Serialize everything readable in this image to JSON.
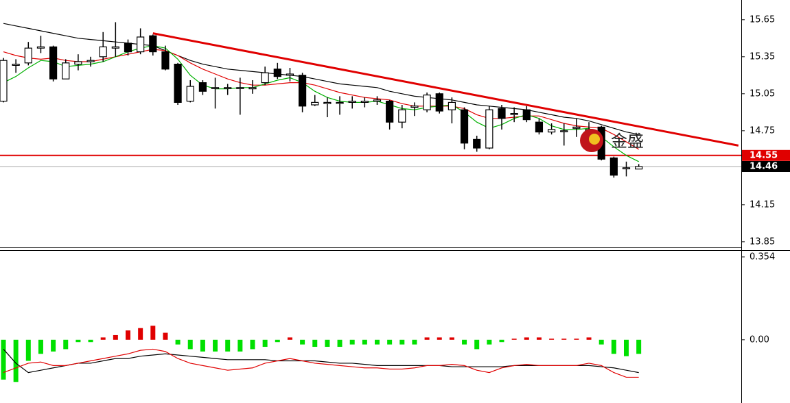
{
  "chart_data": [
    {
      "type": "candlestick",
      "ylim": [
        13.81,
        15.81
      ],
      "yticks": [
        15.65,
        15.35,
        15.05,
        14.75,
        14.15,
        13.85
      ],
      "open": [
        14.99,
        15.28,
        15.3,
        15.42,
        15.43,
        15.17,
        15.29,
        15.31,
        15.35,
        15.42,
        15.46,
        15.39,
        15.52,
        15.39,
        15.29,
        14.99,
        15.14,
        15.1,
        15.1,
        15.1,
        15.09,
        15.14,
        15.25,
        15.2,
        15.2,
        14.96,
        14.97,
        14.98,
        14.98,
        14.98,
        14.99,
        14.99,
        14.82,
        14.94,
        14.92,
        15.05,
        14.92,
        14.92,
        14.68,
        14.61,
        14.93,
        14.89,
        14.92,
        14.82,
        14.74,
        14.75,
        14.77,
        14.76,
        14.78,
        14.53,
        14.45,
        14.44
      ],
      "high": [
        15.34,
        15.33,
        15.47,
        15.52,
        15.44,
        15.33,
        15.37,
        15.35,
        15.55,
        15.63,
        15.49,
        15.58,
        15.53,
        15.44,
        15.3,
        15.16,
        15.16,
        15.18,
        15.13,
        15.18,
        15.16,
        15.27,
        15.3,
        15.26,
        15.22,
        15.04,
        15.02,
        15.03,
        15.03,
        15.02,
        15.03,
        15.0,
        14.96,
        14.98,
        15.06,
        15.06,
        15.02,
        14.94,
        14.71,
        14.95,
        14.96,
        14.94,
        14.95,
        14.85,
        14.81,
        14.81,
        14.85,
        14.82,
        14.79,
        14.54,
        14.5,
        14.48
      ],
      "low": [
        14.98,
        15.22,
        15.28,
        15.38,
        15.15,
        15.17,
        15.24,
        15.27,
        15.31,
        15.35,
        15.36,
        15.37,
        15.36,
        15.24,
        14.96,
        14.98,
        15.04,
        14.93,
        15.04,
        14.88,
        15.05,
        15.12,
        15.17,
        15.15,
        14.9,
        14.95,
        14.86,
        14.88,
        14.93,
        14.94,
        14.96,
        14.76,
        14.77,
        14.87,
        14.9,
        14.89,
        14.81,
        14.6,
        14.58,
        14.6,
        14.76,
        14.82,
        14.82,
        14.72,
        14.72,
        14.63,
        14.7,
        14.71,
        14.51,
        14.37,
        14.38,
        14.44
      ],
      "close": [
        15.32,
        15.29,
        15.42,
        15.43,
        15.17,
        15.3,
        15.31,
        15.32,
        15.43,
        15.43,
        15.39,
        15.51,
        15.39,
        15.25,
        14.98,
        15.11,
        15.07,
        15.1,
        15.1,
        15.1,
        15.1,
        15.22,
        15.19,
        15.21,
        14.95,
        14.98,
        14.98,
        14.98,
        14.99,
        14.99,
        15.0,
        14.82,
        14.92,
        14.95,
        15.04,
        14.91,
        14.98,
        14.65,
        14.61,
        14.92,
        14.85,
        14.89,
        14.84,
        14.74,
        14.76,
        14.75,
        14.78,
        14.76,
        14.52,
        14.39,
        14.45,
        14.46
      ],
      "series": [
        {
          "color": "#000000",
          "values": [
            15.62,
            15.6,
            15.58,
            15.56,
            15.54,
            15.52,
            15.5,
            15.49,
            15.48,
            15.47,
            15.46,
            15.45,
            15.44,
            15.4,
            15.36,
            15.32,
            15.29,
            15.27,
            15.25,
            15.24,
            15.23,
            15.22,
            15.21,
            15.2,
            15.19,
            15.17,
            15.15,
            15.13,
            15.12,
            15.11,
            15.1,
            15.07,
            15.05,
            15.03,
            15.02,
            15.01,
            15.0,
            14.98,
            14.96,
            14.95,
            14.94,
            14.93,
            14.92,
            14.9,
            14.88,
            14.86,
            14.85,
            14.83,
            14.8,
            14.77,
            14.74,
            14.72
          ]
        },
        {
          "color": "#e00000",
          "values": [
            15.39,
            15.36,
            15.34,
            15.33,
            15.34,
            15.32,
            15.31,
            15.31,
            15.33,
            15.35,
            15.37,
            15.39,
            15.41,
            15.4,
            15.36,
            15.3,
            15.25,
            15.21,
            15.17,
            15.14,
            15.12,
            15.12,
            15.13,
            15.14,
            15.14,
            15.12,
            15.09,
            15.06,
            15.04,
            15.02,
            15.01,
            15.0,
            14.97,
            14.95,
            14.95,
            14.95,
            14.95,
            14.93,
            14.88,
            14.85,
            14.85,
            14.86,
            14.87,
            14.87,
            14.84,
            14.81,
            14.79,
            14.78,
            14.77,
            14.72,
            14.66,
            14.6
          ]
        },
        {
          "color": "#00b000",
          "values": [
            15.14,
            15.19,
            15.26,
            15.32,
            15.31,
            15.27,
            15.28,
            15.29,
            15.31,
            15.35,
            15.39,
            15.42,
            15.44,
            15.42,
            15.33,
            15.2,
            15.12,
            15.09,
            15.09,
            15.1,
            15.1,
            15.13,
            15.16,
            15.18,
            15.14,
            15.07,
            15.02,
            14.99,
            14.98,
            14.98,
            14.99,
            14.96,
            14.93,
            14.92,
            14.94,
            14.95,
            14.96,
            14.9,
            14.82,
            14.77,
            14.8,
            14.85,
            14.88,
            14.85,
            14.79,
            14.76,
            14.76,
            14.77,
            14.7,
            14.62,
            14.55,
            14.5
          ]
        }
      ],
      "levels": [
        {
          "value": 14.55,
          "color": "#e00000"
        },
        {
          "value": 14.46,
          "color": "#000000"
        }
      ],
      "trendline": {
        "color": "#e00000",
        "x": [
          12,
          59
        ],
        "y": [
          15.54,
          14.63
        ]
      },
      "watermark": "金盛"
    },
    {
      "type": "macd",
      "ylim": [
        -0.27,
        0.38
      ],
      "yticks": [
        0.354,
        {
          "value": 0,
          "label": "0.00"
        }
      ],
      "histogram": [
        -0.17,
        -0.18,
        -0.09,
        -0.06,
        -0.05,
        -0.04,
        -0.01,
        -0.01,
        0.01,
        0.02,
        0.04,
        0.05,
        0.06,
        0.03,
        -0.02,
        -0.04,
        -0.05,
        -0.05,
        -0.05,
        -0.05,
        -0.04,
        -0.03,
        -0.01,
        0.01,
        -0.02,
        -0.03,
        -0.03,
        -0.03,
        -0.02,
        -0.02,
        -0.02,
        -0.02,
        -0.02,
        -0.02,
        0.01,
        0.01,
        0.01,
        -0.02,
        -0.04,
        -0.02,
        -0.01,
        0.005,
        0.01,
        0.01,
        0.005,
        0.005,
        0.005,
        0.01,
        -0.02,
        -0.06,
        -0.07,
        -0.06
      ],
      "positive_color": "#e00000",
      "negative_color": "#00e000",
      "series": [
        {
          "color": "#000000",
          "values": [
            -0.04,
            -0.1,
            -0.14,
            -0.13,
            -0.12,
            -0.11,
            -0.1,
            -0.1,
            -0.09,
            -0.08,
            -0.08,
            -0.07,
            -0.065,
            -0.06,
            -0.065,
            -0.07,
            -0.075,
            -0.08,
            -0.085,
            -0.085,
            -0.085,
            -0.085,
            -0.09,
            -0.09,
            -0.09,
            -0.09,
            -0.095,
            -0.1,
            -0.1,
            -0.105,
            -0.11,
            -0.11,
            -0.11,
            -0.11,
            -0.11,
            -0.11,
            -0.115,
            -0.115,
            -0.115,
            -0.115,
            -0.115,
            -0.11,
            -0.11,
            -0.11,
            -0.11,
            -0.11,
            -0.11,
            -0.11,
            -0.115,
            -0.12,
            -0.13,
            -0.14
          ]
        },
        {
          "color": "#e00000",
          "values": [
            -0.14,
            -0.12,
            -0.1,
            -0.095,
            -0.11,
            -0.11,
            -0.1,
            -0.09,
            -0.08,
            -0.07,
            -0.06,
            -0.045,
            -0.04,
            -0.05,
            -0.08,
            -0.1,
            -0.11,
            -0.12,
            -0.13,
            -0.125,
            -0.12,
            -0.1,
            -0.09,
            -0.08,
            -0.09,
            -0.1,
            -0.105,
            -0.11,
            -0.115,
            -0.12,
            -0.12,
            -0.125,
            -0.125,
            -0.12,
            -0.11,
            -0.11,
            -0.105,
            -0.11,
            -0.13,
            -0.14,
            -0.12,
            -0.11,
            -0.105,
            -0.11,
            -0.11,
            -0.11,
            -0.11,
            -0.1,
            -0.11,
            -0.14,
            -0.16,
            -0.16
          ]
        }
      ]
    }
  ]
}
